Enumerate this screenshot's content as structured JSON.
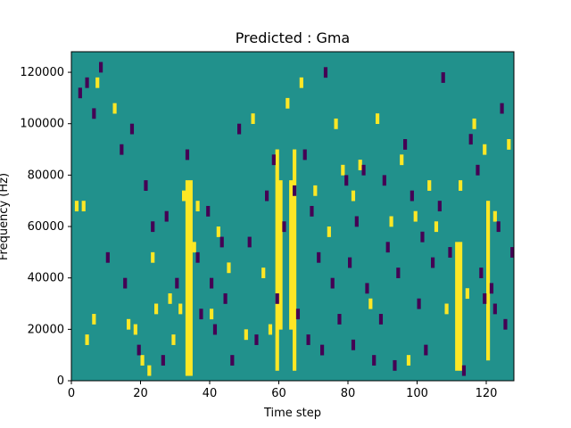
{
  "chart_data": {
    "type": "heatmap",
    "title": "Predicted : Gma",
    "xlabel": "Time step",
    "ylabel": "Frequency (Hz)",
    "xlim": [
      0,
      128
    ],
    "ylim": [
      0,
      128000
    ],
    "x_ticks": [
      0,
      20,
      40,
      60,
      80,
      100,
      120
    ],
    "y_ticks": [
      0,
      20000,
      40000,
      60000,
      80000,
      100000,
      120000
    ],
    "x_tick_labels": [
      "0",
      "20",
      "40",
      "60",
      "80",
      "100",
      "120"
    ],
    "y_tick_labels": [
      "0",
      "20000",
      "40000",
      "60000",
      "80000",
      "100000",
      "120000"
    ],
    "grid": false,
    "legend": "none",
    "colors": {
      "background": "#21918c",
      "low": "#440154",
      "high": "#fde725"
    },
    "bin_width_hz": 4000,
    "time_bins": 128,
    "yellow_bands": [
      {
        "t": [
          33,
          34
        ],
        "f_from": 2000,
        "f_to": 78000
      },
      {
        "t": [
          59,
          64
        ],
        "f_from": 4000,
        "f_to": 90000
      },
      {
        "t": [
          60,
          63
        ],
        "f_from": 20000,
        "f_to": 78000
      },
      {
        "t": [
          111,
          112
        ],
        "f_from": 4000,
        "f_to": 54000
      },
      {
        "t": [
          120
        ],
        "f_from": 8000,
        "f_to": 70000
      }
    ],
    "yellow_cells": [
      [
        1,
        66000
      ],
      [
        3,
        66000
      ],
      [
        4,
        14000
      ],
      [
        6,
        22000
      ],
      [
        7,
        114000
      ],
      [
        12,
        104000
      ],
      [
        16,
        20000
      ],
      [
        18,
        18000
      ],
      [
        20,
        6000
      ],
      [
        22,
        2000
      ],
      [
        23,
        46000
      ],
      [
        24,
        26000
      ],
      [
        28,
        30000
      ],
      [
        29,
        14000
      ],
      [
        31,
        26000
      ],
      [
        32,
        70000
      ],
      [
        35,
        50000
      ],
      [
        36,
        66000
      ],
      [
        40,
        24000
      ],
      [
        42,
        56000
      ],
      [
        45,
        42000
      ],
      [
        50,
        16000
      ],
      [
        52,
        100000
      ],
      [
        55,
        40000
      ],
      [
        57,
        18000
      ],
      [
        62,
        106000
      ],
      [
        66,
        114000
      ],
      [
        70,
        72000
      ],
      [
        74,
        56000
      ],
      [
        76,
        98000
      ],
      [
        78,
        80000
      ],
      [
        81,
        70000
      ],
      [
        83,
        82000
      ],
      [
        86,
        28000
      ],
      [
        88,
        100000
      ],
      [
        92,
        60000
      ],
      [
        95,
        84000
      ],
      [
        97,
        6000
      ],
      [
        99,
        62000
      ],
      [
        103,
        74000
      ],
      [
        105,
        58000
      ],
      [
        108,
        26000
      ],
      [
        112,
        74000
      ],
      [
        114,
        32000
      ],
      [
        116,
        98000
      ],
      [
        119,
        88000
      ],
      [
        122,
        62000
      ],
      [
        126,
        90000
      ]
    ],
    "dark_cells": [
      [
        2,
        110000
      ],
      [
        4,
        114000
      ],
      [
        6,
        102000
      ],
      [
        8,
        120000
      ],
      [
        10,
        46000
      ],
      [
        14,
        88000
      ],
      [
        15,
        36000
      ],
      [
        17,
        96000
      ],
      [
        19,
        10000
      ],
      [
        21,
        74000
      ],
      [
        23,
        58000
      ],
      [
        26,
        6000
      ],
      [
        27,
        62000
      ],
      [
        30,
        36000
      ],
      [
        33,
        86000
      ],
      [
        36,
        46000
      ],
      [
        37,
        24000
      ],
      [
        39,
        64000
      ],
      [
        40,
        36000
      ],
      [
        41,
        18000
      ],
      [
        43,
        52000
      ],
      [
        44,
        30000
      ],
      [
        46,
        6000
      ],
      [
        48,
        96000
      ],
      [
        51,
        52000
      ],
      [
        53,
        14000
      ],
      [
        56,
        70000
      ],
      [
        58,
        84000
      ],
      [
        59,
        30000
      ],
      [
        61,
        58000
      ],
      [
        64,
        72000
      ],
      [
        65,
        24000
      ],
      [
        67,
        86000
      ],
      [
        68,
        14000
      ],
      [
        69,
        64000
      ],
      [
        71,
        46000
      ],
      [
        72,
        10000
      ],
      [
        73,
        118000
      ],
      [
        75,
        36000
      ],
      [
        77,
        22000
      ],
      [
        79,
        76000
      ],
      [
        80,
        44000
      ],
      [
        81,
        12000
      ],
      [
        82,
        60000
      ],
      [
        84,
        80000
      ],
      [
        85,
        34000
      ],
      [
        87,
        6000
      ],
      [
        89,
        22000
      ],
      [
        90,
        76000
      ],
      [
        91,
        50000
      ],
      [
        93,
        4000
      ],
      [
        94,
        40000
      ],
      [
        96,
        90000
      ],
      [
        98,
        70000
      ],
      [
        100,
        28000
      ],
      [
        101,
        54000
      ],
      [
        102,
        10000
      ],
      [
        104,
        44000
      ],
      [
        106,
        66000
      ],
      [
        107,
        116000
      ],
      [
        109,
        48000
      ],
      [
        113,
        2000
      ],
      [
        115,
        92000
      ],
      [
        117,
        80000
      ],
      [
        118,
        40000
      ],
      [
        119,
        30000
      ],
      [
        121,
        34000
      ],
      [
        122,
        26000
      ],
      [
        123,
        58000
      ],
      [
        124,
        104000
      ],
      [
        125,
        20000
      ],
      [
        127,
        48000
      ]
    ]
  }
}
